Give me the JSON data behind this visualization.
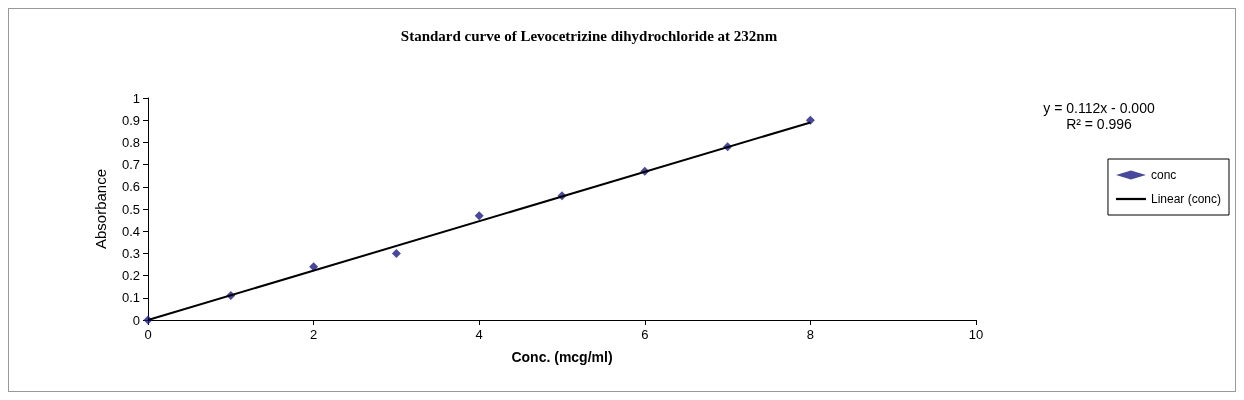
{
  "chart_data": {
    "type": "scatter",
    "title": "Standard curve of Levocetrizine dihydrochloride at 232nm",
    "xlabel": "Conc. (mcg/ml)",
    "ylabel": "Absorbance",
    "series": [
      {
        "name": "conc",
        "color": "#1a1a8c",
        "x": [
          0,
          1,
          2,
          3,
          4,
          5,
          6,
          7,
          8
        ],
        "values": [
          0,
          0.11,
          0.24,
          0.3,
          0.47,
          0.56,
          0.67,
          0.78,
          0.9
        ],
        "marker": "diamond"
      },
      {
        "name": "Linear (conc)",
        "type": "line",
        "color": "#000000",
        "x": [
          0,
          8
        ],
        "values": [
          0,
          0.89
        ],
        "marker": "none",
        "line_style": "solid"
      }
    ],
    "xlim": [
      0,
      10
    ],
    "xticks": [
      0,
      2,
      4,
      6,
      8,
      10
    ],
    "ylim": [
      0,
      1
    ],
    "yticks": [
      0,
      0.1,
      0.2,
      0.3,
      0.4,
      0.5,
      0.6,
      0.7,
      0.8,
      0.9,
      1
    ],
    "grid": false,
    "legend": "right",
    "annotations": [
      "y = 0.112x - 0.000",
      "R² = 0.996"
    ]
  }
}
